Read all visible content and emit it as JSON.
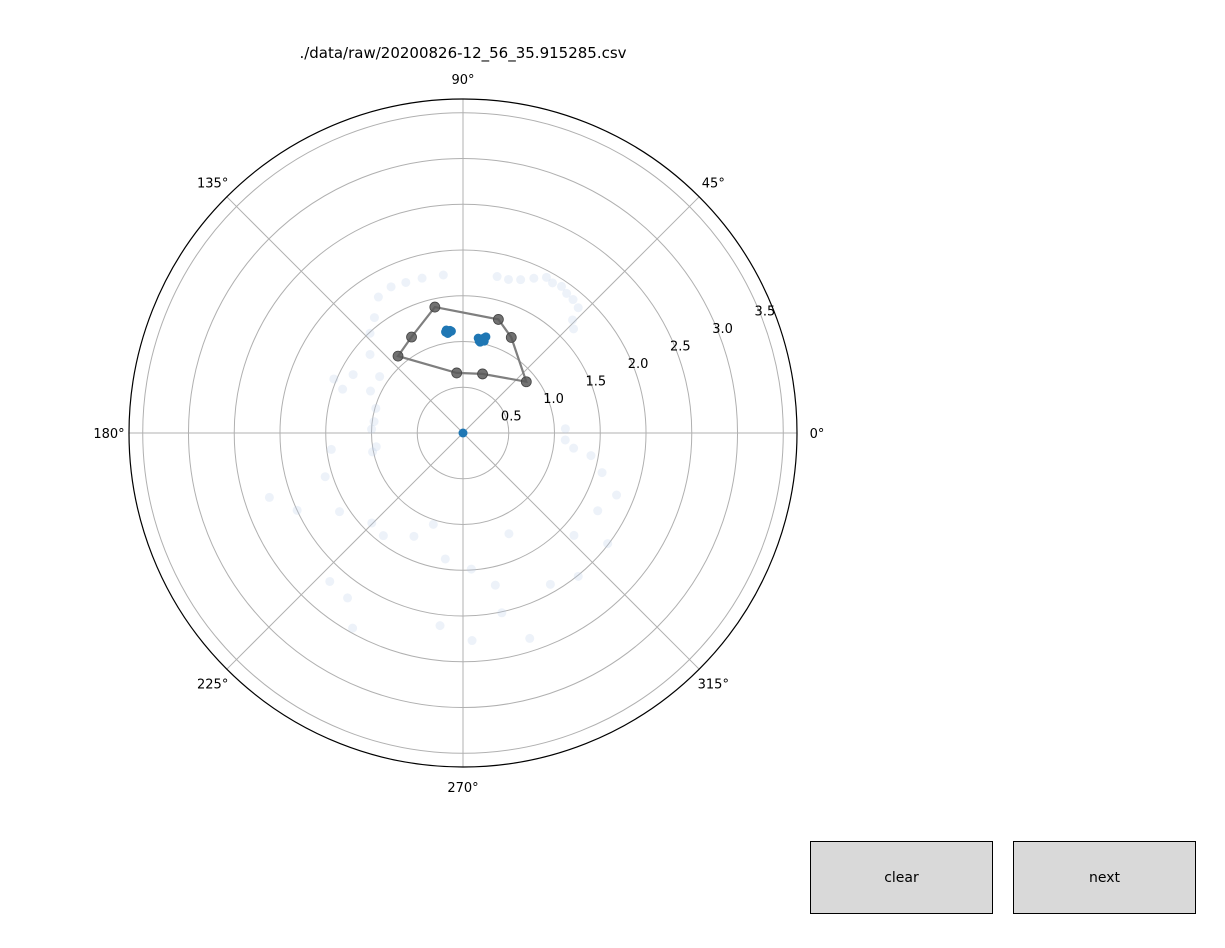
{
  "chart_data": {
    "type": "scatter",
    "projection": "polar",
    "title": "./data/raw/20200826-12_56_35.915285.csv",
    "theta_tick_labels": [
      "0°",
      "45°",
      "90°",
      "135°",
      "180°",
      "225°",
      "270°",
      "315°"
    ],
    "theta_ticks_deg": [
      0,
      45,
      90,
      135,
      180,
      225,
      270,
      315
    ],
    "r_tick_labels": [
      "0.5",
      "1.0",
      "1.5",
      "2.0",
      "2.5",
      "3.0",
      "3.5"
    ],
    "r_ticks": [
      0.5,
      1.0,
      1.5,
      2.0,
      2.5,
      3.0,
      3.5
    ],
    "rlim": [
      0,
      3.65
    ],
    "grid": true,
    "colors": {
      "cluster": "#1f77b4",
      "polygon_line": "#7f7f7f",
      "polygon_marker": "#595959",
      "background_scan": "#b8cde6",
      "grid": "#b0b0b0"
    },
    "series": [
      {
        "kind": "polygon",
        "points": [
          {
            "theta": 63.2,
            "r": 1.17
          },
          {
            "theta": 72.7,
            "r": 1.3
          },
          {
            "theta": 102.6,
            "r": 1.41
          },
          {
            "theta": 118.2,
            "r": 1.19
          },
          {
            "theta": 130.2,
            "r": 1.1
          },
          {
            "theta": 96.0,
            "r": 0.66
          },
          {
            "theta": 71.7,
            "r": 0.68
          },
          {
            "theta": 39.0,
            "r": 0.89
          }
        ]
      },
      {
        "kind": "cluster",
        "points": [
          {
            "theta": 99.2,
            "r": 1.14
          },
          {
            "theta": 98.3,
            "r": 1.12
          },
          {
            "theta": 97.8,
            "r": 1.11
          },
          {
            "theta": 99.8,
            "r": 1.12
          },
          {
            "theta": 97.2,
            "r": 1.13
          },
          {
            "theta": 98.7,
            "r": 1.1
          },
          {
            "theta": 96.5,
            "r": 1.12
          },
          {
            "theta": 80.9,
            "r": 1.05
          },
          {
            "theta": 80.0,
            "r": 1.02
          },
          {
            "theta": 78.4,
            "r": 1.04
          },
          {
            "theta": 77.8,
            "r": 1.06
          },
          {
            "theta": 76.6,
            "r": 1.08
          },
          {
            "theta": 79.3,
            "r": 1.01
          },
          {
            "theta": 77.0,
            "r": 1.03
          },
          {
            "theta": 0,
            "r": 0
          }
        ]
      },
      {
        "kind": "scan",
        "points": [
          {
            "theta": 77.7,
            "r": 1.75
          },
          {
            "theta": 73.5,
            "r": 1.75
          },
          {
            "theta": 69.4,
            "r": 1.79
          },
          {
            "theta": 65.4,
            "r": 1.86
          },
          {
            "theta": 61.8,
            "r": 1.93
          },
          {
            "theta": 59.2,
            "r": 1.91
          },
          {
            "theta": 56.1,
            "r": 1.93
          },
          {
            "theta": 53.4,
            "r": 1.9
          },
          {
            "theta": 50.5,
            "r": 1.89
          },
          {
            "theta": 47.4,
            "r": 1.86
          },
          {
            "theta": 45.9,
            "r": 1.72
          },
          {
            "theta": 43.3,
            "r": 1.66
          },
          {
            "theta": 97.1,
            "r": 1.74
          },
          {
            "theta": 104.8,
            "r": 1.75
          },
          {
            "theta": 110.8,
            "r": 1.76
          },
          {
            "theta": 116.2,
            "r": 1.78
          },
          {
            "theta": 121.9,
            "r": 1.75
          },
          {
            "theta": 127.5,
            "r": 1.59
          },
          {
            "theta": 133.0,
            "r": 1.49
          },
          {
            "theta": 139.8,
            "r": 1.33
          },
          {
            "theta": 145.9,
            "r": 1.1
          },
          {
            "theta": 155.6,
            "r": 1.11
          },
          {
            "theta": 164.2,
            "r": 0.99
          },
          {
            "theta": 172.7,
            "r": 0.98
          },
          {
            "theta": 177.6,
            "r": 1.0
          },
          {
            "theta": 2.4,
            "r": 1.12
          },
          {
            "theta": 356.1,
            "r": 1.12
          },
          {
            "theta": 352.2,
            "r": 1.22
          },
          {
            "theta": 350.0,
            "r": 1.42
          },
          {
            "theta": 344.1,
            "r": 1.58
          },
          {
            "theta": 338.0,
            "r": 1.81
          },
          {
            "theta": 330.0,
            "r": 1.7
          },
          {
            "theta": 322.6,
            "r": 1.99
          },
          {
            "theta": 317.3,
            "r": 1.65
          },
          {
            "theta": 308.8,
            "r": 2.01
          },
          {
            "theta": 300.0,
            "r": 1.91
          },
          {
            "theta": 294.5,
            "r": 1.21
          },
          {
            "theta": 282.0,
            "r": 1.7
          },
          {
            "theta": 273.5,
            "r": 1.49
          },
          {
            "theta": 262.0,
            "r": 1.39
          },
          {
            "theta": 252.0,
            "r": 1.05
          },
          {
            "theta": 244.6,
            "r": 1.25
          },
          {
            "theta": 232.2,
            "r": 1.42
          },
          {
            "theta": 224.6,
            "r": 1.4
          },
          {
            "theta": 212.5,
            "r": 1.6
          },
          {
            "theta": 197.6,
            "r": 1.58
          },
          {
            "theta": 191.8,
            "r": 1.01
          },
          {
            "theta": 187.1,
            "r": 1.45
          },
          {
            "theta": 189.0,
            "r": 0.96
          },
          {
            "theta": 228.1,
            "r": 2.18
          },
          {
            "theta": 235.0,
            "r": 2.2
          },
          {
            "theta": 240.5,
            "r": 2.45
          },
          {
            "theta": 263.2,
            "r": 2.12
          },
          {
            "theta": 272.5,
            "r": 2.27
          },
          {
            "theta": 282.2,
            "r": 2.01
          },
          {
            "theta": 288.0,
            "r": 2.36
          },
          {
            "theta": 198.4,
            "r": 2.23
          },
          {
            "theta": 205.0,
            "r": 2.0
          },
          {
            "theta": 157.3,
            "r": 1.53
          },
          {
            "theta": 152.0,
            "r": 1.36
          },
          {
            "theta": 160.0,
            "r": 1.4
          }
        ]
      }
    ]
  },
  "buttons": {
    "clear": "clear",
    "next": "next"
  }
}
